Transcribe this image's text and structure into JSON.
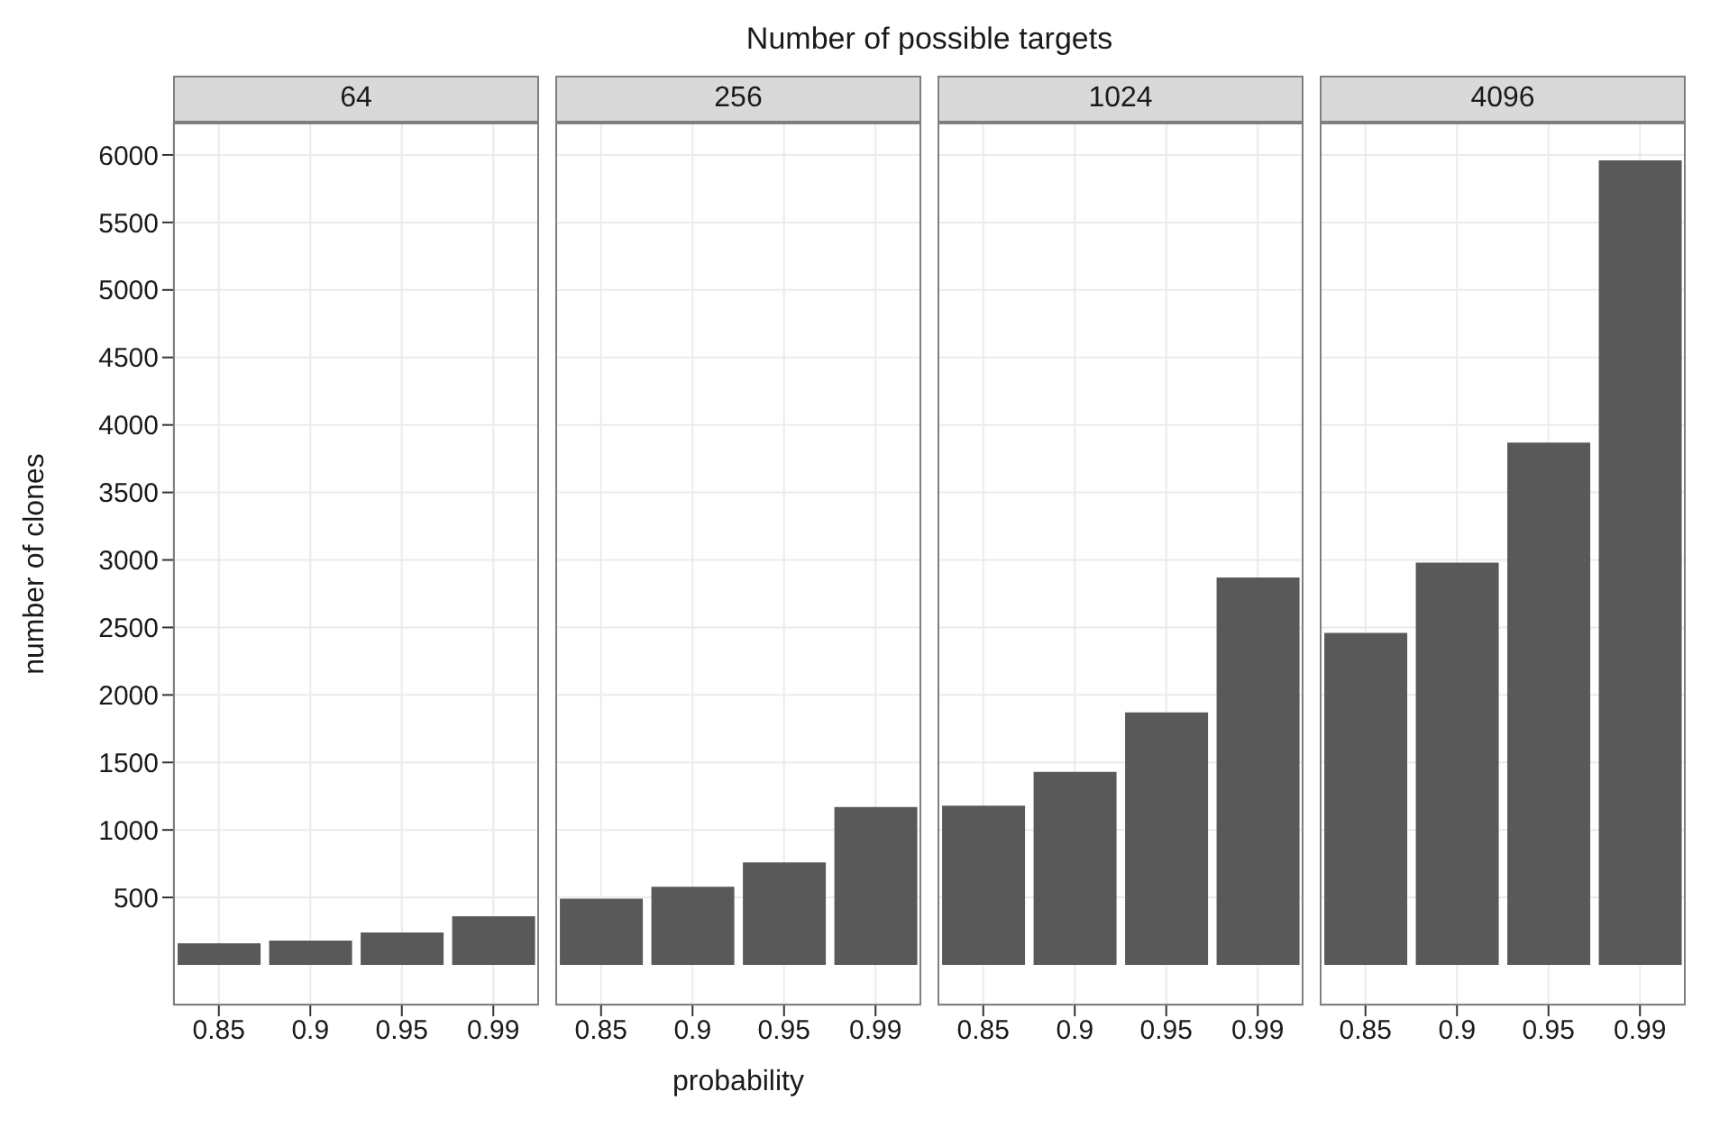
{
  "chart_data": [
    {
      "type": "bar",
      "title": "64",
      "annotations": [
        "Number of possible targets"
      ],
      "ylabel": "number of clones",
      "categories": [
        "0.85",
        "0.9",
        "0.95",
        "0.99"
      ],
      "values": [
        160,
        180,
        240,
        360
      ],
      "color": "#595959",
      "ylim": [
        -300,
        6240
      ],
      "yticks": [
        500,
        1000,
        1500,
        2000,
        2500,
        3000,
        3500,
        4000,
        4500,
        5000,
        5500,
        6000
      ],
      "grid": true
    },
    {
      "type": "bar",
      "title": "256",
      "xlabel": "probability",
      "categories": [
        "0.85",
        "0.9",
        "0.95",
        "0.99"
      ],
      "values": [
        490,
        580,
        760,
        1170
      ],
      "color": "#595959",
      "ylim": [
        -300,
        6240
      ],
      "yticks": [
        500,
        1000,
        1500,
        2000,
        2500,
        3000,
        3500,
        4000,
        4500,
        5000,
        5500,
        6000
      ],
      "grid": true,
      "tick_labels": "x"
    },
    {
      "type": "bar",
      "title": "1024",
      "categories": [
        "0.85",
        "0.9",
        "0.95",
        "0.99"
      ],
      "values": [
        1180,
        1430,
        1870,
        2870
      ],
      "color": "#595959",
      "ylim": [
        -300,
        6240
      ],
      "yticks": [
        500,
        1000,
        1500,
        2000,
        2500,
        3000,
        3500,
        4000,
        4500,
        5000,
        5500,
        6000
      ],
      "grid": true,
      "tick_labels": "x"
    },
    {
      "type": "bar",
      "title": "4096",
      "categories": [
        "0.85",
        "0.9",
        "0.95",
        "0.99"
      ],
      "values": [
        2460,
        2980,
        3870,
        5960
      ],
      "color": "#595959",
      "ylim": [
        -300,
        6240
      ],
      "yticks": [
        500,
        1000,
        1500,
        2000,
        2500,
        3000,
        3500,
        4000,
        4500,
        5000,
        5500,
        6000
      ],
      "grid": true,
      "tick_labels": "x"
    }
  ]
}
